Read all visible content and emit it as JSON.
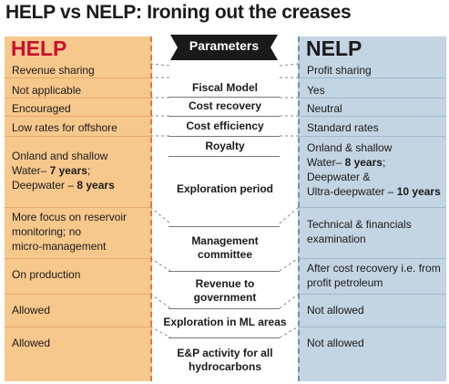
{
  "title": "HELP vs NELP: Ironing out the creases",
  "help_header": "HELP",
  "nelp_header": "NELP",
  "param_header": "Parameters",
  "rows": [
    {
      "param": "Fiscal Model",
      "help": "Revenue sharing",
      "nelp": "Profit sharing"
    },
    {
      "param": "Cost recovery",
      "help": "Not applicable",
      "nelp": "Yes"
    },
    {
      "param": "Cost efficiency",
      "help": "Encouraged",
      "nelp": "Neutral"
    },
    {
      "param": "Royalty",
      "help": "Low rates for offshore",
      "nelp": "Standard rates"
    },
    {
      "param": "Exploration period",
      "help_lines": [
        "Onland and shallow",
        "Water– 7 years;",
        "Deepwater – 8 years"
      ],
      "nelp_lines": [
        "Onland & shallow",
        "Water– 8 years;",
        "Deepwater &",
        "Ultra-deepwater – 10 years"
      ]
    },
    {
      "param_lines": [
        "Management",
        "committee"
      ],
      "help_lines": [
        "More focus on reservoir",
        "monitoring; no",
        "micro-management"
      ],
      "nelp_lines": [
        "Technical & financials",
        "examination"
      ]
    },
    {
      "param_lines": [
        "Revenue to",
        "government"
      ],
      "help": "On production",
      "nelp_lines": [
        "After cost recovery i.e. from",
        "profit petroleum"
      ]
    },
    {
      "param": "Exploration in ML areas",
      "help": "Allowed",
      "nelp": "Not allowed"
    },
    {
      "param_lines": [
        "E&P activity for all",
        "hydrocarbons"
      ],
      "help": "Allowed",
      "nelp": "Not allowed"
    }
  ],
  "colors": {
    "help_bg": "#f7c88c",
    "nelp_bg": "#c3d4e3",
    "help_header": "#c8102e",
    "param_banner": "#1a1a1a"
  }
}
